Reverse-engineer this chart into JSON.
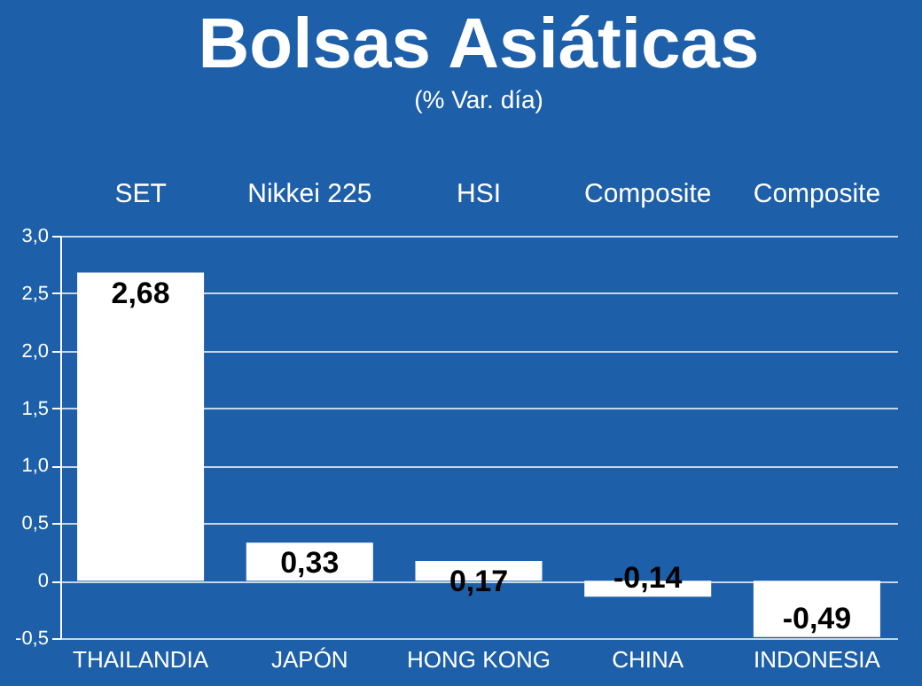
{
  "chart_data": {
    "type": "bar",
    "title": "Bolsas Asiáticas",
    "subtitle": "(% Var. día)",
    "categories": [
      "THAILANDIA",
      "JAPÓN",
      "HONG KONG",
      "CHINA",
      "INDONESIA"
    ],
    "values": [
      2.68,
      0.33,
      0.17,
      -0.14,
      -0.49
    ],
    "value_labels": [
      "2,68",
      "0,33",
      "0,17",
      "-0,14",
      "-0,49"
    ],
    "color": "#ffffff",
    "annotations": [
      "SET",
      "Nikkei 225",
      "HSI",
      "Composite",
      "Composite"
    ],
    "ylim": [
      -0.5,
      3.0
    ],
    "yticks": [
      {
        "value": -0.5,
        "label": "-0,5"
      },
      0,
      {
        "value": 0.5,
        "label": "0,5"
      },
      {
        "value": 1.0,
        "label": "1,0"
      },
      {
        "value": 1.5,
        "label": "1,5"
      },
      {
        "value": 2.0,
        "label": "2,0"
      },
      {
        "value": 2.5,
        "label": "2,5"
      },
      {
        "value": 3.0,
        "label": "3,0"
      }
    ],
    "grid": "y"
  }
}
